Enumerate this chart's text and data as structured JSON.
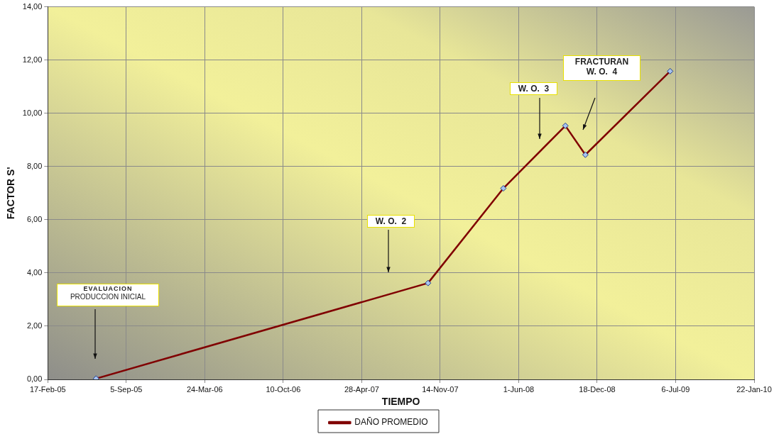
{
  "chart_data": {
    "type": "line",
    "xlabel": "TIEMPO",
    "ylabel": "FACTOR S'",
    "x": [
      "2005-06-20",
      "2007-10-14",
      "2008-04-23",
      "2008-09-28",
      "2008-11-18",
      "2009-06-22"
    ],
    "series": [
      {
        "name": "DAÑO PROMEDIO",
        "color": "#800000",
        "values": [
          0.03,
          3.62,
          7.18,
          9.53,
          8.44,
          11.58
        ]
      }
    ],
    "xlim": [
      "2005-02-17",
      "2010-01-22"
    ],
    "xticks": [
      {
        "value": "2005-02-17",
        "label": "17-Feb-05"
      },
      {
        "value": "2005-09-05",
        "label": "5-Sep-05"
      },
      {
        "value": "2006-03-24",
        "label": "24-Mar-06"
      },
      {
        "value": "2006-10-10",
        "label": "10-Oct-06"
      },
      {
        "value": "2007-04-28",
        "label": "28-Apr-07"
      },
      {
        "value": "2007-11-14",
        "label": "14-Nov-07"
      },
      {
        "value": "2008-06-01",
        "label": "1-Jun-08"
      },
      {
        "value": "2008-12-18",
        "label": "18-Dec-08"
      },
      {
        "value": "2009-07-06",
        "label": "6-Jul-09"
      },
      {
        "value": "2010-01-22",
        "label": "22-Jan-10"
      }
    ],
    "ylim": [
      0,
      14
    ],
    "yticks": [
      {
        "value": 0,
        "label": "0,00"
      },
      {
        "value": 2,
        "label": "2,00"
      },
      {
        "value": 4,
        "label": "4,00"
      },
      {
        "value": 6,
        "label": "6,00"
      },
      {
        "value": 8,
        "label": "8,00"
      },
      {
        "value": 10,
        "label": "10,00"
      },
      {
        "value": 12,
        "label": "12,00"
      },
      {
        "value": 14,
        "label": "14,00"
      }
    ],
    "grid": true,
    "legend": "bottom",
    "marker": "diamond",
    "line_style": "solid",
    "annotations": [
      "EVALUACION\nPRODUCCION INICIAL",
      "W. O.  2",
      "W. O.  3",
      "FRACTURAN\nW. O.  4"
    ]
  }
}
